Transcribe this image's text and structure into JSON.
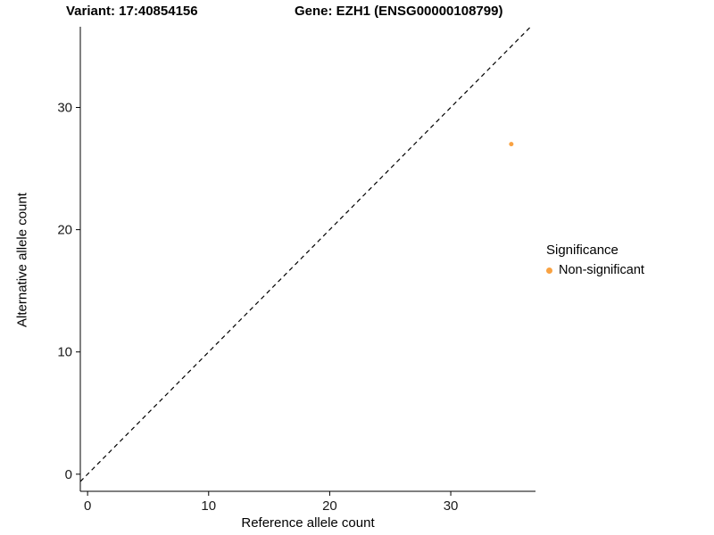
{
  "chart_data": {
    "type": "scatter",
    "title_left": "Variant: 17:40854156",
    "title_right": "Gene: EZH1 (ENSG00000108799)",
    "xlabel": "Reference allele count",
    "ylabel": "Alternative allele count",
    "xlim": [
      -0.6,
      37.0
    ],
    "ylim": [
      -1.4,
      36.6
    ],
    "xticks": [
      0,
      10,
      20,
      30
    ],
    "yticks": [
      0,
      10,
      20,
      30
    ],
    "grid": false,
    "identity_line": {
      "style": "dashed",
      "color": "#000000",
      "from": -0.6,
      "to": 36.6
    },
    "series": [
      {
        "name": "Non-significant",
        "color": "#F9A242",
        "points": [
          {
            "x": 35,
            "y": 27
          }
        ],
        "point_radius": 2.5
      }
    ],
    "legend": {
      "position": "right",
      "title": "Significance",
      "entries": [
        {
          "label": "Non-significant",
          "color": "#F9A242"
        }
      ]
    },
    "axis_color": "#000000",
    "tick_label_color": "#1a1a1a"
  }
}
